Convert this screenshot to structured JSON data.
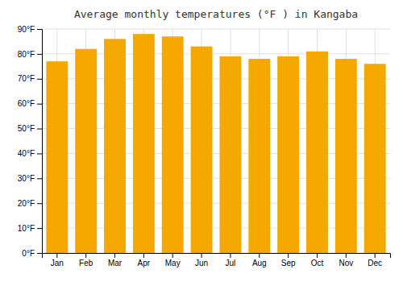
{
  "chart_data": {
    "type": "bar",
    "title": "Average monthly temperatures (°F ) in Kangaba",
    "categories": [
      "Jan",
      "Feb",
      "Mar",
      "Apr",
      "May",
      "Jun",
      "Jul",
      "Aug",
      "Sep",
      "Oct",
      "Nov",
      "Dec"
    ],
    "values": [
      77,
      82,
      86,
      88,
      87,
      83,
      79,
      78,
      79,
      81,
      78,
      76
    ],
    "color": "#F5A800",
    "ylim": [
      0,
      90
    ],
    "yticks": [
      {
        "value": 0,
        "label": "0°F"
      },
      {
        "value": 10,
        "label": "10°F"
      },
      {
        "value": 20,
        "label": "20°F"
      },
      {
        "value": 30,
        "label": "30°F"
      },
      {
        "value": 40,
        "label": "40°F"
      },
      {
        "value": 50,
        "label": "50°F"
      },
      {
        "value": 60,
        "label": "60°F"
      },
      {
        "value": 70,
        "label": "70°F"
      },
      {
        "value": 80,
        "label": "80°F"
      },
      {
        "value": 90,
        "label": "90°F"
      }
    ],
    "grid": true
  }
}
